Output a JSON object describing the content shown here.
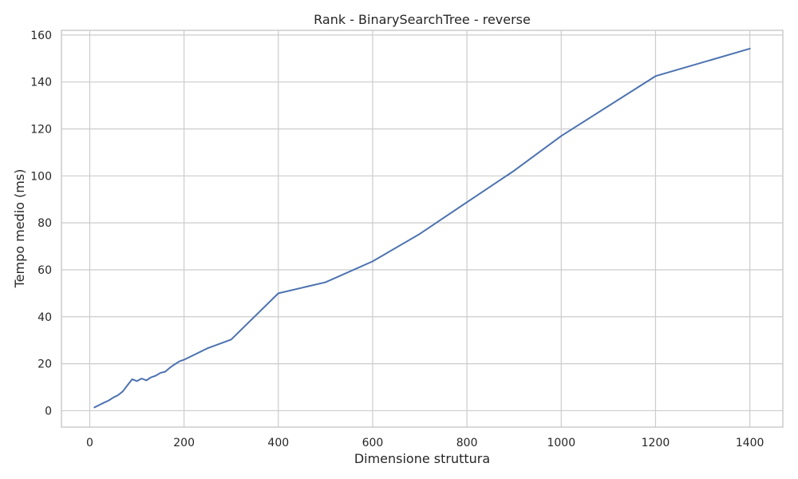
{
  "chart_data": {
    "type": "line",
    "title": "Rank - BinarySearchTree - reverse",
    "xlabel": "Dimensione struttura",
    "ylabel": "Tempo medio (ms)",
    "xlim": [
      -60,
      1470
    ],
    "ylim": [
      -7,
      162
    ],
    "xticks": [
      0,
      200,
      400,
      600,
      800,
      1000,
      1200,
      1400
    ],
    "yticks": [
      0,
      20,
      40,
      60,
      80,
      100,
      120,
      140,
      160
    ],
    "grid": true,
    "series": [
      {
        "color": "#4c72b0",
        "x": [
          10,
          20,
          30,
          40,
          50,
          60,
          70,
          80,
          90,
          100,
          110,
          120,
          130,
          140,
          150,
          160,
          170,
          180,
          190,
          200,
          250,
          300,
          400,
          500,
          600,
          700,
          800,
          900,
          1000,
          1200,
          1400
        ],
        "y": [
          1.4,
          2.4,
          3.4,
          4.3,
          5.6,
          6.6,
          8.2,
          10.8,
          13.4,
          12.6,
          13.7,
          12.9,
          14.2,
          14.9,
          16.1,
          16.6,
          18.3,
          19.7,
          21.0,
          21.7,
          26.6,
          30.3,
          50.0,
          54.7,
          63.6,
          75.3,
          88.8,
          102.2,
          117.0,
          142.5,
          154.2
        ]
      }
    ]
  }
}
